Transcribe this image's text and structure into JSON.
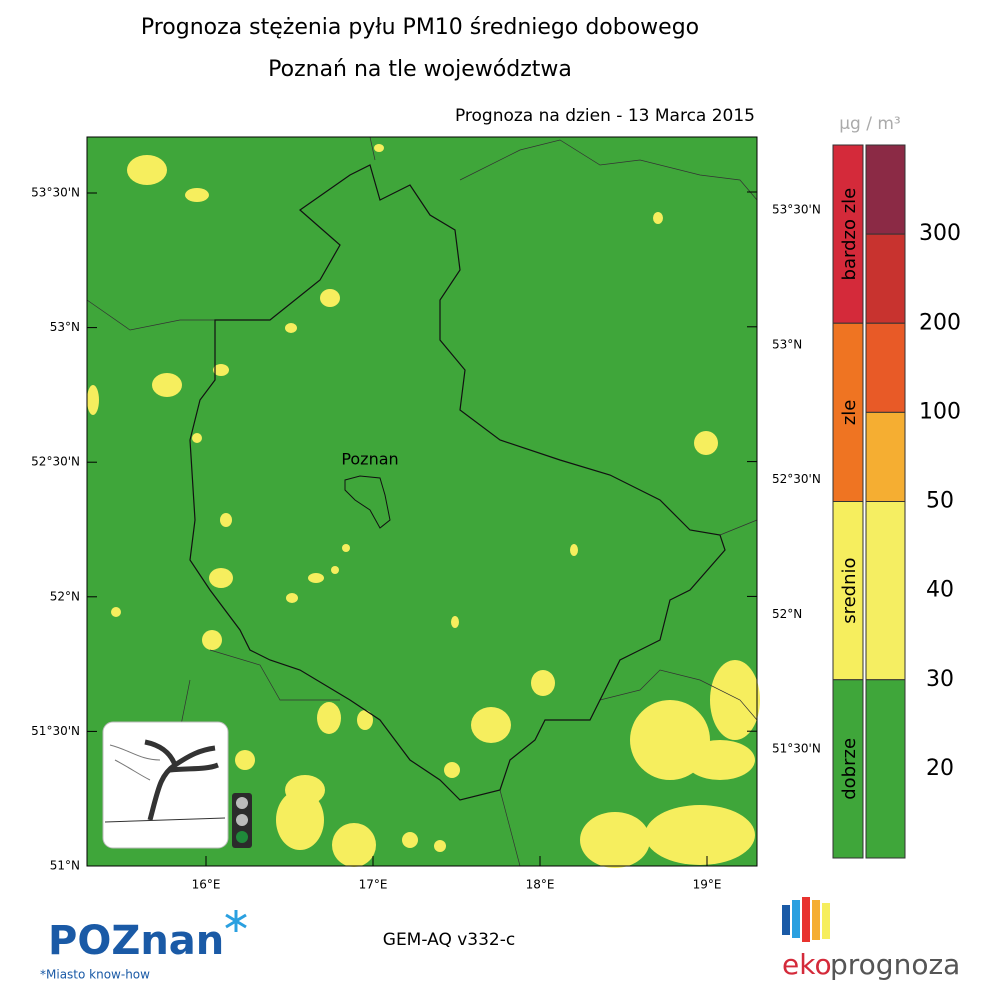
{
  "header": {
    "title": "Prognoza stężenia pyłu PM10 średniego dobowego",
    "subtitle": "Poznań na tle województwa",
    "date_label": "Prognoza na dzien -  13 Marca 2015"
  },
  "map": {
    "city": "Poznan",
    "lat_labels_left": [
      "53°30'N",
      "53°N",
      "52°30'N",
      "52°N",
      "51°30'N",
      "51°N"
    ],
    "lat_labels_right": [
      "53°30'N",
      "53°N",
      "52°30'N",
      "52°N",
      "51°30'N"
    ],
    "lon_labels": [
      "16°E",
      "17°E",
      "18°E",
      "19°E"
    ]
  },
  "legend": {
    "unit": "μg / m³",
    "categories": [
      {
        "label": "bardzo zle",
        "color": "#d42a3a"
      },
      {
        "label": "zle",
        "color": "#ef7422"
      },
      {
        "label": "srednio",
        "color": "#f6ee5e"
      },
      {
        "label": "dobrze",
        "color": "#3fa63a"
      }
    ],
    "scale_colors": [
      "#8b2a45",
      "#c8332f",
      "#e85a27",
      "#f5ae32",
      "#f5ee62",
      "#3fa63a"
    ],
    "levels": [
      300,
      200,
      100,
      50,
      40,
      30,
      20
    ]
  },
  "footer": {
    "model": "GEM-AQ v332-c",
    "city_logo": "POZnan",
    "city_tagline": "*Miasto know-how",
    "brand_a": "eko",
    "brand_b": "prognoza"
  }
}
